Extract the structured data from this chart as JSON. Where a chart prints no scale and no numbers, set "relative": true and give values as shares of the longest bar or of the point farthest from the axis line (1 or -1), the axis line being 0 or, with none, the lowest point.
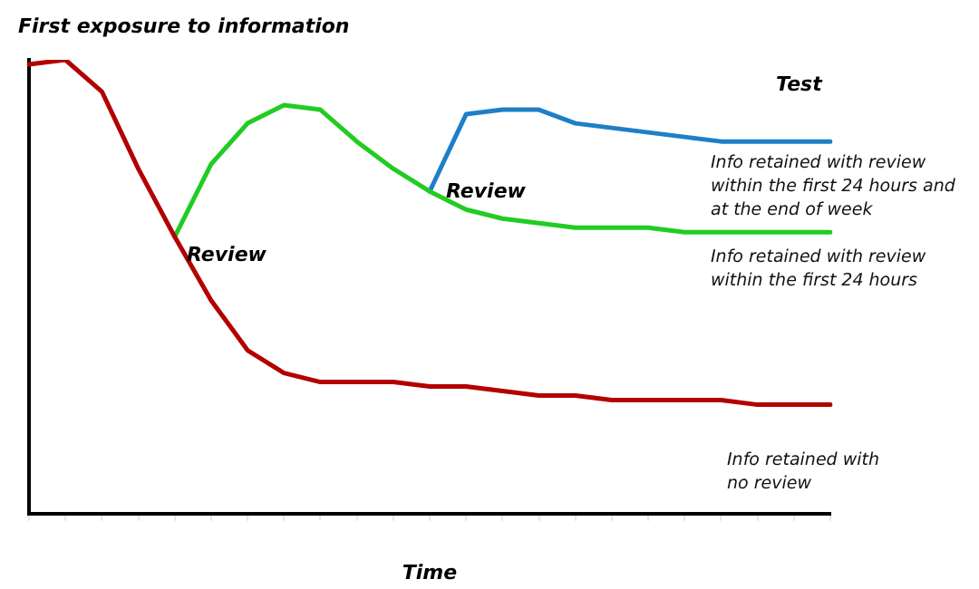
{
  "chart_data": {
    "type": "line",
    "relative": true,
    "ylabel": "First exposure to information",
    "xlabel": "Time",
    "marker": "none",
    "legend": false,
    "grid": false,
    "categories": [
      null,
      null,
      null,
      null,
      null,
      null,
      null,
      null,
      null,
      null,
      null,
      null,
      null,
      null,
      null,
      null,
      null,
      null,
      null,
      null,
      null,
      null,
      null
    ],
    "series": [
      {
        "name": "Info retained with no review",
        "color": "#b30000",
        "values": [
          0.99,
          1,
          0.93,
          0.76,
          0.61,
          0.47,
          0.36,
          0.31,
          0.29,
          0.29,
          0.29,
          0.28,
          0.28,
          0.27,
          0.26,
          0.26,
          0.25,
          0.25,
          0.25,
          0.25,
          0.24,
          0.24,
          0.24
        ]
      },
      {
        "name": "Info retained with review within the first 24 hours",
        "color": "#22cc22",
        "values": [
          null,
          null,
          null,
          null,
          0.61,
          0.77,
          0.86,
          0.9,
          0.89,
          0.82,
          0.76,
          0.71,
          0.67,
          0.65,
          0.64,
          0.63,
          0.63,
          0.63,
          0.62,
          0.62,
          0.62,
          0.62,
          0.62
        ]
      },
      {
        "name": "Info retained with review within the first 24 hours and at the end of week",
        "color": "#1e7fc8",
        "values": [
          null,
          null,
          null,
          null,
          null,
          null,
          null,
          null,
          null,
          null,
          null,
          0.71,
          0.88,
          0.89,
          0.89,
          0.86,
          0.85,
          0.84,
          0.83,
          0.82,
          0.82,
          0.82,
          0.82
        ]
      }
    ],
    "annotations": [
      "Review",
      "Review",
      "Test"
    ]
  }
}
